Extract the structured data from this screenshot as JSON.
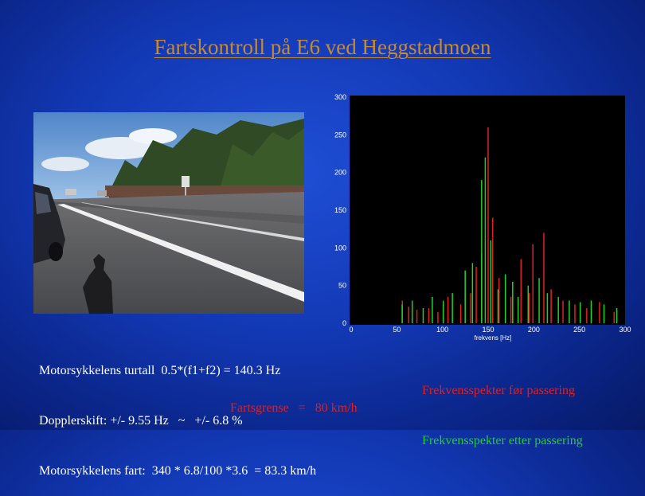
{
  "slide": {
    "title": "Fartskontroll på E6 ved Heggstadmoen"
  },
  "info_lines": [
    "Motorsykkelens turtall  0.5*(f1+f2) = 140.3 Hz",
    "Dopplerskift: +/- 9.55 Hz   ~   +/- 6.8 %",
    "Motorsykkelens fart:  340 * 6.8/100 *3.6  = 83.3 km/h"
  ],
  "speed_limit": "Fartsgrense   =   80 km/h",
  "legend": {
    "before": "Frekvensspekter før passering",
    "after": "Frekvensspekter etter passering"
  },
  "colors": {
    "title": "#c98a2c",
    "before": "#e02020",
    "after": "#1fd12a"
  },
  "chart_data": {
    "type": "line",
    "xlabel": "frekvens [Hz]",
    "ylabel": "",
    "xlim": [
      0,
      300
    ],
    "ylim": [
      0,
      300
    ],
    "x_ticks": [
      "0",
      "50",
      "100",
      "150",
      "200",
      "250",
      "300"
    ],
    "y_ticks": [
      "0",
      "50",
      "100",
      "150",
      "200",
      "250",
      "300"
    ],
    "series": [
      {
        "name": "Frekvensspekter før passering",
        "color": "#e02020",
        "peaks": [
          {
            "x": 56,
            "y": 30
          },
          {
            "x": 63,
            "y": 22
          },
          {
            "x": 72,
            "y": 18
          },
          {
            "x": 85,
            "y": 20
          },
          {
            "x": 95,
            "y": 15
          },
          {
            "x": 106,
            "y": 35
          },
          {
            "x": 120,
            "y": 25
          },
          {
            "x": 131,
            "y": 40
          },
          {
            "x": 137,
            "y": 75
          },
          {
            "x": 143,
            "y": 92
          },
          {
            "x": 150,
            "y": 260
          },
          {
            "x": 155,
            "y": 140
          },
          {
            "x": 162,
            "y": 60
          },
          {
            "x": 175,
            "y": 35
          },
          {
            "x": 186,
            "y": 85
          },
          {
            "x": 195,
            "y": 40
          },
          {
            "x": 199,
            "y": 105
          },
          {
            "x": 211,
            "y": 120
          },
          {
            "x": 219,
            "y": 45
          },
          {
            "x": 232,
            "y": 30
          },
          {
            "x": 245,
            "y": 25
          },
          {
            "x": 258,
            "y": 20
          },
          {
            "x": 272,
            "y": 28
          },
          {
            "x": 288,
            "y": 15
          }
        ]
      },
      {
        "name": "Frekvensspekter etter passering",
        "color": "#1fd12a",
        "peaks": [
          {
            "x": 55,
            "y": 25
          },
          {
            "x": 66,
            "y": 30
          },
          {
            "x": 78,
            "y": 20
          },
          {
            "x": 88,
            "y": 35
          },
          {
            "x": 100,
            "y": 30
          },
          {
            "x": 110,
            "y": 40
          },
          {
            "x": 124,
            "y": 70
          },
          {
            "x": 132,
            "y": 80
          },
          {
            "x": 142,
            "y": 190
          },
          {
            "x": 146,
            "y": 220
          },
          {
            "x": 152,
            "y": 110
          },
          {
            "x": 160,
            "y": 45
          },
          {
            "x": 168,
            "y": 65
          },
          {
            "x": 176,
            "y": 55
          },
          {
            "x": 182,
            "y": 35
          },
          {
            "x": 193,
            "y": 50
          },
          {
            "x": 205,
            "y": 60
          },
          {
            "x": 214,
            "y": 40
          },
          {
            "x": 226,
            "y": 35
          },
          {
            "x": 238,
            "y": 30
          },
          {
            "x": 250,
            "y": 28
          },
          {
            "x": 262,
            "y": 30
          },
          {
            "x": 276,
            "y": 25
          },
          {
            "x": 290,
            "y": 20
          }
        ]
      }
    ]
  }
}
